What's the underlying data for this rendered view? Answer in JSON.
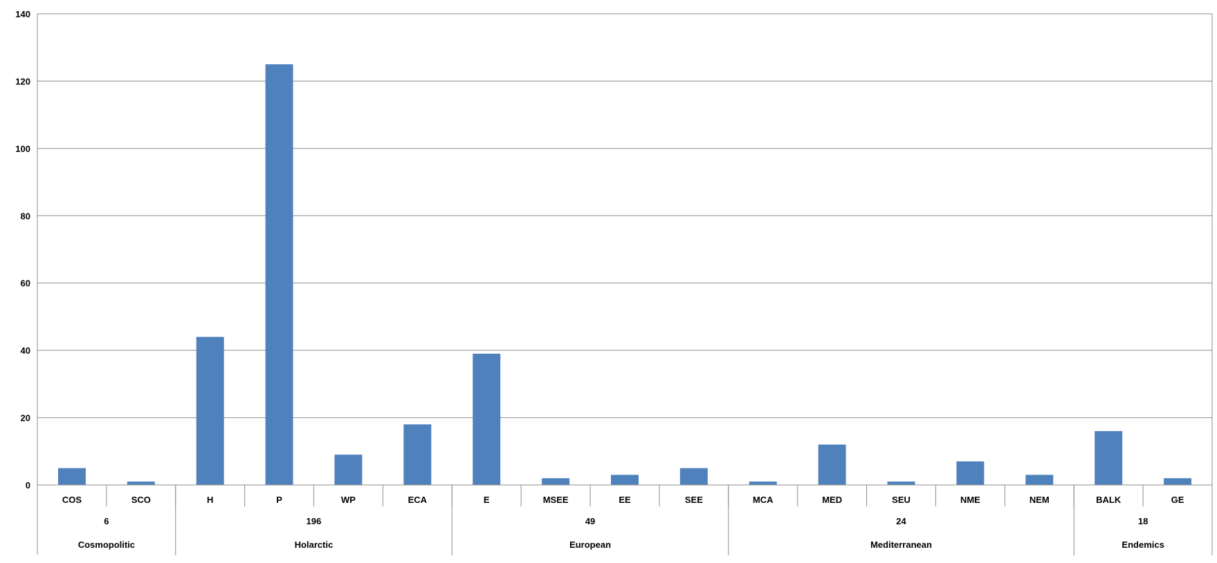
{
  "chart_data": {
    "type": "bar",
    "color": "#4f81bd",
    "ylim": [
      0,
      140
    ],
    "yticks": [
      0,
      20,
      40,
      60,
      80,
      100,
      120,
      140
    ],
    "grid": true,
    "categories": [
      "COS",
      "SCO",
      "H",
      "P",
      "WP",
      "ECA",
      "E",
      "MSEE",
      "EE",
      "SEE",
      "MCA",
      "MED",
      "SEU",
      "NME",
      "NEM",
      "BALK",
      "GE"
    ],
    "values": [
      5,
      1,
      44,
      125,
      9,
      18,
      39,
      2,
      3,
      5,
      1,
      12,
      1,
      7,
      3,
      16,
      2
    ],
    "groups": [
      {
        "name": "Cosmopolitic",
        "total": "6",
        "count": 2
      },
      {
        "name": "Holarctic",
        "total": "196",
        "count": 4
      },
      {
        "name": "European",
        "total": "49",
        "count": 4
      },
      {
        "name": "Mediterranean",
        "total": "24",
        "count": 5
      },
      {
        "name": "Endemics",
        "total": "18",
        "count": 2
      }
    ]
  }
}
